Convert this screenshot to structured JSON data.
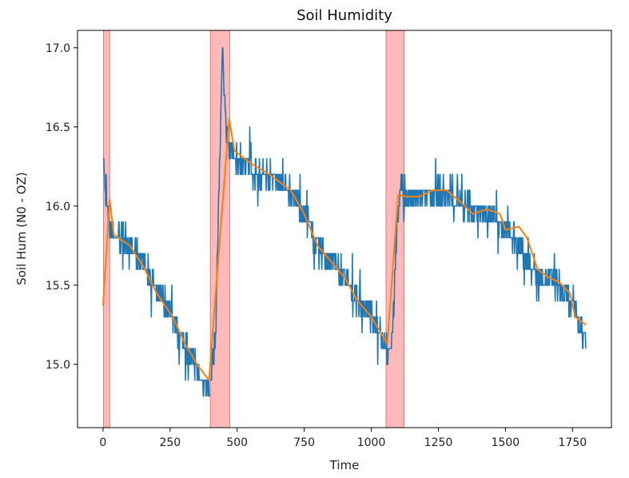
{
  "chart_data": {
    "type": "line",
    "title": "Soil Humidity",
    "xlabel": "Time",
    "ylabel": "Soil Hum (N0 - OZ)",
    "xlim": [
      -95,
      1895
    ],
    "ylim": [
      14.6,
      17.11
    ],
    "xticks": [
      0,
      250,
      500,
      750,
      1000,
      1250,
      1500,
      1750
    ],
    "yticks": [
      15.0,
      15.5,
      16.0,
      16.5,
      17.0
    ],
    "grid": false,
    "colors": {
      "raw": "#1f77b4",
      "smooth": "#ff7f0e",
      "highlight": "#ff8080"
    },
    "highlight_regions": [
      {
        "x0": 2,
        "x1": 25
      },
      {
        "x0": 400,
        "x1": 472
      },
      {
        "x0": 1055,
        "x1": 1122
      }
    ],
    "series": [
      {
        "role": "raw",
        "segments": [
          {
            "x0": 0,
            "x1": 400,
            "knots": [
              [
                0,
                16.4
              ],
              [
                4,
                16.2
              ],
              [
                10,
                16.0
              ],
              [
                30,
                15.85
              ],
              [
                60,
                15.8
              ],
              [
                100,
                15.75
              ],
              [
                150,
                15.65
              ],
              [
                200,
                15.45
              ],
              [
                260,
                15.3
              ],
              [
                300,
                15.15
              ],
              [
                350,
                14.95
              ],
              [
                400,
                14.85
              ]
            ],
            "amp": 0.085
          },
          {
            "x0": 400,
            "x1": 472,
            "knots": [
              [
                400,
                14.9
              ],
              [
                420,
                15.2
              ],
              [
                435,
                16.3
              ],
              [
                445,
                17.0
              ],
              [
                455,
                16.6
              ],
              [
                465,
                16.4
              ],
              [
                472,
                16.35
              ]
            ],
            "amp": 0.06
          },
          {
            "x0": 472,
            "x1": 1060,
            "knots": [
              [
                472,
                16.35
              ],
              [
                500,
                16.3
              ],
              [
                600,
                16.2
              ],
              [
                700,
                16.1
              ],
              [
                750,
                15.95
              ],
              [
                800,
                15.75
              ],
              [
                880,
                15.6
              ],
              [
                950,
                15.4
              ],
              [
                1000,
                15.3
              ],
              [
                1050,
                15.15
              ],
              [
                1060,
                15.1
              ]
            ],
            "amp": 0.075
          },
          {
            "x0": 1060,
            "x1": 1800,
            "knots": [
              [
                1060,
                15.0
              ],
              [
                1080,
                15.2
              ],
              [
                1095,
                15.9
              ],
              [
                1110,
                16.1
              ],
              [
                1150,
                16.05
              ],
              [
                1250,
                16.1
              ],
              [
                1350,
                16.0
              ],
              [
                1450,
                15.95
              ],
              [
                1500,
                15.85
              ],
              [
                1550,
                15.75
              ],
              [
                1600,
                15.6
              ],
              [
                1650,
                15.55
              ],
              [
                1700,
                15.5
              ],
              [
                1750,
                15.35
              ],
              [
                1800,
                15.15
              ]
            ],
            "amp": 0.075
          }
        ]
      },
      {
        "role": "smooth",
        "points": [
          [
            0,
            15.37
          ],
          [
            25,
            16.04
          ],
          [
            40,
            15.82
          ],
          [
            100,
            15.75
          ],
          [
            150,
            15.62
          ],
          [
            200,
            15.45
          ],
          [
            260,
            15.3
          ],
          [
            300,
            15.15
          ],
          [
            350,
            15.0
          ],
          [
            395,
            14.9
          ],
          [
            470,
            16.55
          ],
          [
            490,
            16.35
          ],
          [
            550,
            16.27
          ],
          [
            620,
            16.2
          ],
          [
            700,
            16.1
          ],
          [
            750,
            15.95
          ],
          [
            800,
            15.75
          ],
          [
            850,
            15.65
          ],
          [
            900,
            15.55
          ],
          [
            950,
            15.4
          ],
          [
            1000,
            15.3
          ],
          [
            1060,
            15.13
          ],
          [
            1100,
            16.07
          ],
          [
            1130,
            16.06
          ],
          [
            1180,
            16.06
          ],
          [
            1230,
            16.1
          ],
          [
            1280,
            16.1
          ],
          [
            1330,
            16.03
          ],
          [
            1380,
            15.95
          ],
          [
            1430,
            15.98
          ],
          [
            1480,
            15.95
          ],
          [
            1500,
            15.85
          ],
          [
            1550,
            15.87
          ],
          [
            1580,
            15.8
          ],
          [
            1620,
            15.6
          ],
          [
            1660,
            15.55
          ],
          [
            1700,
            15.52
          ],
          [
            1740,
            15.45
          ],
          [
            1760,
            15.3
          ],
          [
            1800,
            15.25
          ]
        ]
      }
    ]
  }
}
